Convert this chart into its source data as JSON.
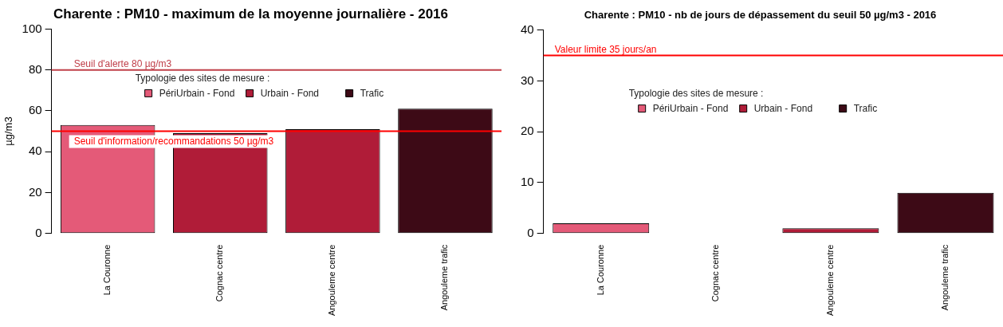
{
  "chart_data": [
    {
      "type": "bar",
      "title": "Charente : PM10 - maximum de la moyenne journalière - 2016",
      "ylabel": "µg/m3",
      "categories": [
        "La Couronne",
        "Cognac centre",
        "Angouleme centre",
        "Angouleme trafic"
      ],
      "stacked": true,
      "legend": "top",
      "legend_title": "Typologie des sites de mesure :",
      "series": [
        {
          "name": "PériUrbain - Fond",
          "color": "#e45a78",
          "values": [
            53,
            null,
            null,
            null
          ]
        },
        {
          "name": "Urbain - Fond",
          "color": "#b01c38",
          "values": [
            null,
            49,
            51,
            null
          ]
        },
        {
          "name": "Trafic",
          "color": "#3d0a16",
          "values": [
            null,
            null,
            null,
            61
          ]
        }
      ],
      "ylim": [
        0,
        100
      ],
      "yticks": [
        0,
        20,
        40,
        60,
        80,
        100
      ],
      "grid": false,
      "ref_lines": [
        {
          "axis": "y",
          "value": 80,
          "label": "Seuil d'alerte 80 µg/m3",
          "color": "#c0404a"
        },
        {
          "axis": "y",
          "value": 50,
          "label": "Seuil d'information/recommandations 50 µg/m3",
          "color": "#ff0000"
        }
      ]
    },
    {
      "type": "bar",
      "title": "Charente : PM10 - nb de jours de dépassement du seuil 50 µg/m3 - 2016",
      "categories": [
        "La Couronne",
        "Cognac centre",
        "Angouleme centre",
        "Angouleme trafic"
      ],
      "stacked": true,
      "legend": "top",
      "legend_title": "Typologie des sites de mesure :",
      "series": [
        {
          "name": "PériUrbain - Fond",
          "color": "#e45a78",
          "values": [
            2,
            null,
            null,
            null
          ]
        },
        {
          "name": "Urbain - Fond",
          "color": "#b01c38",
          "values": [
            null,
            0,
            1,
            null
          ]
        },
        {
          "name": "Trafic",
          "color": "#3d0a16",
          "values": [
            null,
            null,
            null,
            8
          ]
        }
      ],
      "ylim": [
        0,
        40
      ],
      "yticks": [
        0,
        10,
        20,
        30,
        40
      ],
      "grid": false,
      "ref_lines": [
        {
          "axis": "y",
          "value": 35,
          "label": "Valeur limite 35 jours/an",
          "color": "#ff0000"
        }
      ]
    }
  ]
}
